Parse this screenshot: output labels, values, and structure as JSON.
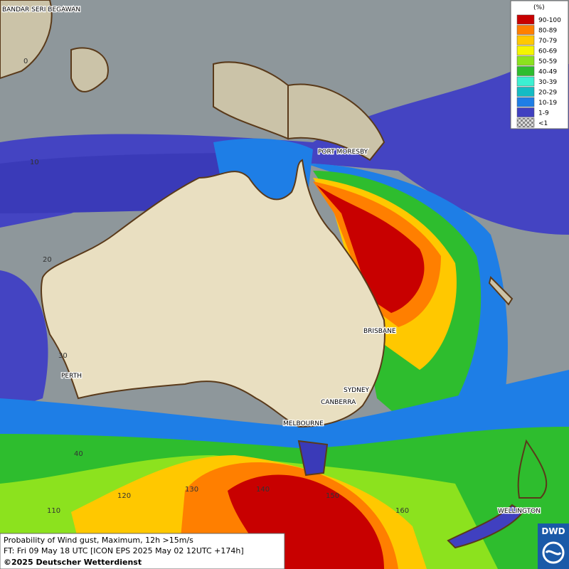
{
  "legend": {
    "title": "(%)",
    "items": [
      {
        "label": "90-100",
        "color": "#c80000"
      },
      {
        "label": "80-89",
        "color": "#ff7f00"
      },
      {
        "label": "70-79",
        "color": "#ffc800"
      },
      {
        "label": "60-69",
        "color": "#f5f500"
      },
      {
        "label": "50-59",
        "color": "#8ce21e"
      },
      {
        "label": "40-49",
        "color": "#2ebd2e"
      },
      {
        "label": "30-39",
        "color": "#3cf0d2"
      },
      {
        "label": "20-29",
        "color": "#14bcc4"
      },
      {
        "label": "10-19",
        "color": "#1e7ee6"
      },
      {
        "label": "1-9",
        "color": "#4040c0"
      },
      {
        "label": "<1",
        "color": "#b0b0b0"
      }
    ]
  },
  "cities": [
    "BANDAR SERI BEGAWAN",
    "PORT MORESBY",
    "BRISBANE",
    "SYDNEY",
    "CANBERRA",
    "MELBOURNE",
    "PERTH",
    "WELLINGTON"
  ],
  "grid_labels": [
    0,
    10,
    20,
    30,
    40,
    110,
    120,
    130,
    140,
    150,
    160
  ],
  "caption": [
    "Probability of Wind gust, Maximum, 12h >15m/s",
    "FT: Fri 09 May 18 UTC [ICON EPS 2025 May 02 12UTC +174h]",
    "©2025 Deutscher Wetterdienst"
  ],
  "logo": "DWD"
}
